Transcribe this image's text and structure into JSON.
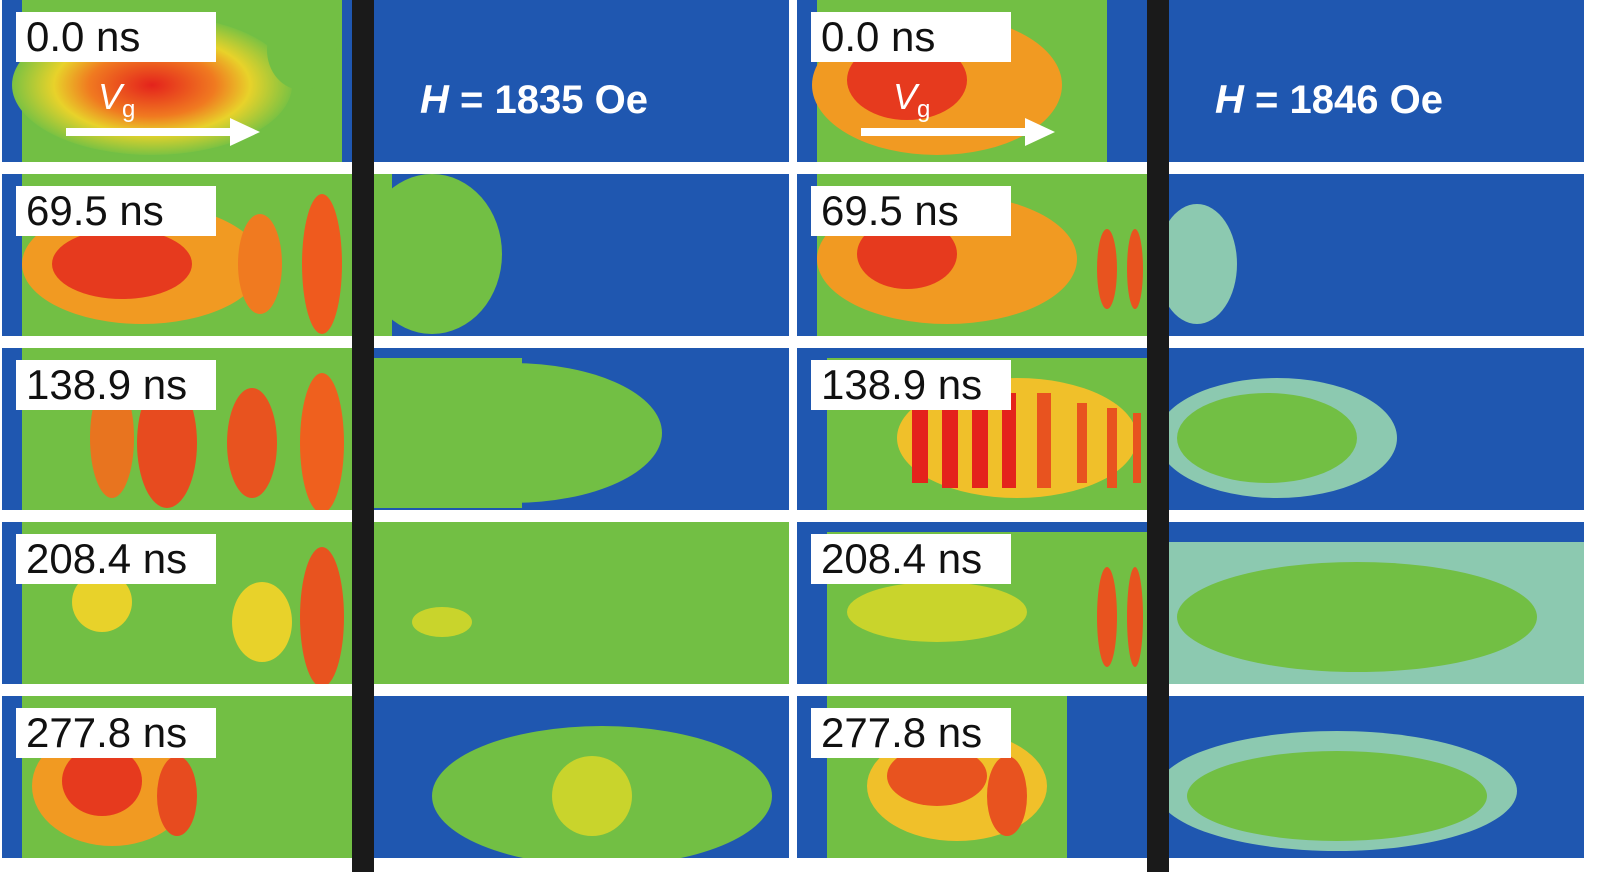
{
  "panels": [
    {
      "field_symbol": "H",
      "field_value": "= 1835 Oe",
      "velocity_symbol": "V",
      "velocity_subscript": "g",
      "frames": [
        "0.0 ns",
        "69.5 ns",
        "138.9 ns",
        "208.4 ns",
        "277.8 ns"
      ]
    },
    {
      "field_symbol": "H",
      "field_value": "= 1846 Oe",
      "velocity_symbol": "V",
      "velocity_subscript": "g",
      "frames": [
        "0.0 ns",
        "69.5 ns",
        "138.9 ns",
        "208.4 ns",
        "277.8 ns"
      ]
    }
  ],
  "colors": {
    "background": "#1f57b0",
    "divider": "#1a1a1a",
    "label_bg": "#ffffff"
  }
}
